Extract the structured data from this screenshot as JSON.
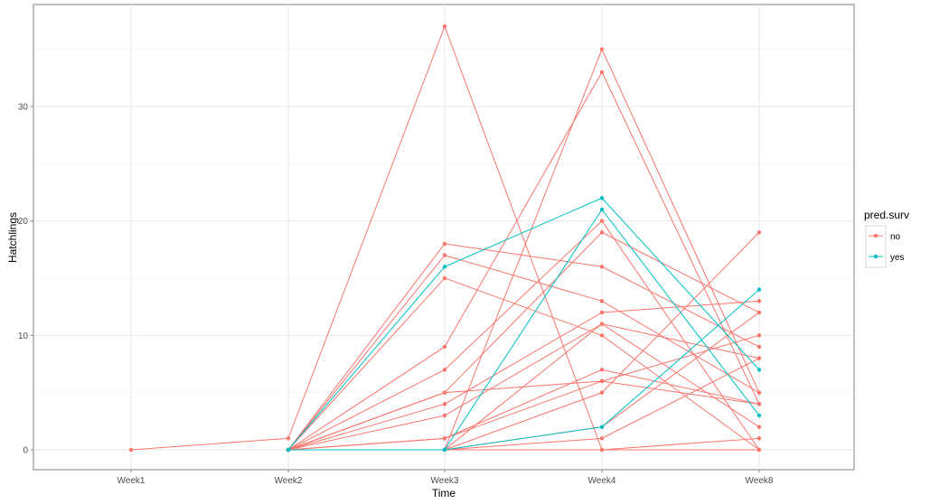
{
  "chart_data": {
    "type": "line",
    "xlabel": "Time",
    "ylabel": "Hatchlings",
    "categories": [
      "Week1",
      "Week2",
      "Week3",
      "Week4",
      "Week8"
    ],
    "ylim": [
      -1.6,
      38.5
    ],
    "yticks": [
      0,
      10,
      20,
      30
    ],
    "grid": true,
    "legend": {
      "title": "pred.surv",
      "position": "right",
      "entries": [
        {
          "label": "no",
          "color": "#F8766D"
        },
        {
          "label": "yes",
          "color": "#00BFC4"
        }
      ]
    },
    "series": [
      {
        "group": "no",
        "values": [
          0,
          1,
          37,
          0,
          0
        ]
      },
      {
        "group": "no",
        "values": [
          null,
          0,
          0,
          35,
          5
        ]
      },
      {
        "group": "no",
        "values": [
          null,
          0,
          9,
          33,
          4
        ]
      },
      {
        "group": "no",
        "values": [
          null,
          0,
          7,
          20,
          0
        ]
      },
      {
        "group": "no",
        "values": [
          null,
          0,
          17,
          13,
          5
        ]
      },
      {
        "group": "no",
        "values": [
          null,
          0,
          18,
          16,
          9
        ]
      },
      {
        "group": "no",
        "values": [
          null,
          0,
          15,
          10,
          0
        ]
      },
      {
        "group": "no",
        "values": [
          null,
          0,
          5,
          19,
          12
        ]
      },
      {
        "group": "no",
        "values": [
          null,
          0,
          5,
          6,
          4
        ]
      },
      {
        "group": "no",
        "values": [
          null,
          0,
          4,
          12,
          13
        ]
      },
      {
        "group": "no",
        "values": [
          null,
          0,
          3,
          11,
          8
        ]
      },
      {
        "group": "no",
        "values": [
          null,
          0,
          1,
          7,
          4
        ]
      },
      {
        "group": "no",
        "values": [
          null,
          0,
          0,
          11,
          2
        ]
      },
      {
        "group": "no",
        "values": [
          null,
          0,
          1,
          6,
          10
        ]
      },
      {
        "group": "no",
        "values": [
          null,
          0,
          0,
          5,
          19
        ]
      },
      {
        "group": "no",
        "values": [
          null,
          0,
          0,
          2,
          12
        ]
      },
      {
        "group": "no",
        "values": [
          null,
          0,
          0,
          1,
          8
        ]
      },
      {
        "group": "no",
        "values": [
          null,
          0,
          0,
          0,
          1
        ]
      },
      {
        "group": "yes",
        "values": [
          null,
          0,
          16,
          22,
          7
        ]
      },
      {
        "group": "yes",
        "values": [
          null,
          0,
          0,
          21,
          3
        ]
      },
      {
        "group": "yes",
        "values": [
          null,
          0,
          0,
          2,
          14
        ]
      }
    ]
  }
}
